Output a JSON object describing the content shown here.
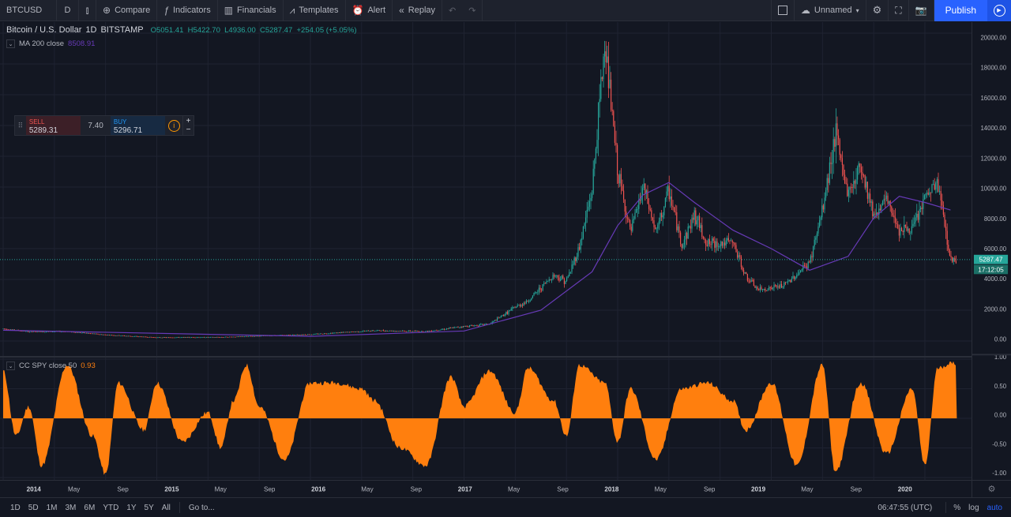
{
  "toolbar": {
    "symbol": "BTCUSD",
    "interval": "D",
    "compare": "Compare",
    "indicators": "Indicators",
    "financials": "Financials",
    "templates": "Templates",
    "alert": "Alert",
    "replay": "Replay",
    "layout_name": "Unnamed",
    "publish": "Publish"
  },
  "legend": {
    "symbol_name": "Bitcoin / U.S. Dollar",
    "interval": "1D",
    "exchange": "BITSTAMP",
    "ohlc": "O5051.41  H5422.70  L4936.00  C5287.47  +254.05 (+5.05%)"
  },
  "ma": {
    "label": "MA 200 close",
    "value": "8508.91"
  },
  "cc": {
    "label": "CC SPY close 50",
    "value": "0.93"
  },
  "trade": {
    "sell_label": "SELL",
    "sell_price": "5289.31",
    "spread": "7.40",
    "buy_label": "BUY",
    "buy_price": "5296.71"
  },
  "price_axis": {
    "ticks": [
      "20000.00",
      "18000.00",
      "16000.00",
      "14000.00",
      "12000.00",
      "10000.00",
      "8000.00",
      "6000.00",
      "4000.00",
      "2000.00",
      "0.00"
    ],
    "last_price": "5287.47",
    "countdown": "17:12:05"
  },
  "cc_axis": {
    "ticks": [
      "1.00",
      "0.50",
      "0.00",
      "-0.50",
      "-1.00"
    ]
  },
  "time_axis": {
    "labels": [
      {
        "t": "2014",
        "bold": true
      },
      {
        "t": "May"
      },
      {
        "t": "Sep"
      },
      {
        "t": "2015",
        "bold": true
      },
      {
        "t": "May"
      },
      {
        "t": "Sep"
      },
      {
        "t": "2016",
        "bold": true
      },
      {
        "t": "May"
      },
      {
        "t": "Sep"
      },
      {
        "t": "2017",
        "bold": true
      },
      {
        "t": "May"
      },
      {
        "t": "Sep"
      },
      {
        "t": "2018",
        "bold": true
      },
      {
        "t": "May"
      },
      {
        "t": "Sep"
      },
      {
        "t": "2019",
        "bold": true
      },
      {
        "t": "May"
      },
      {
        "t": "Sep"
      },
      {
        "t": "2020",
        "bold": true
      }
    ]
  },
  "bottombar": {
    "ranges": [
      "1D",
      "5D",
      "1M",
      "3M",
      "6M",
      "YTD",
      "1Y",
      "5Y",
      "All"
    ],
    "goto": "Go to...",
    "clock": "06:47:55 (UTC)",
    "percent": "%",
    "log": "log",
    "auto": "auto"
  },
  "colors": {
    "background": "#131722",
    "candle_up": "#26a69a",
    "candle_down": "#ef5350",
    "ma": "#673ab7",
    "cc_fill": "#ff7f0e",
    "accent": "#2962ff"
  },
  "chart_data": {
    "type": "candlestick",
    "symbol": "BTCUSD",
    "x_range": [
      "2014-01",
      "2020-03"
    ],
    "ylim": [
      0,
      20000
    ],
    "price_series": [
      {
        "date": "2014-01",
        "close": 800
      },
      {
        "date": "2014-03",
        "close": 600
      },
      {
        "date": "2014-06",
        "close": 620
      },
      {
        "date": "2014-09",
        "close": 400
      },
      {
        "date": "2015-01",
        "close": 230
      },
      {
        "date": "2015-06",
        "close": 250
      },
      {
        "date": "2015-11",
        "close": 380
      },
      {
        "date": "2016-01",
        "close": 430
      },
      {
        "date": "2016-06",
        "close": 680
      },
      {
        "date": "2016-10",
        "close": 620
      },
      {
        "date": "2017-01",
        "close": 950
      },
      {
        "date": "2017-03",
        "close": 1100
      },
      {
        "date": "2017-05",
        "close": 2200
      },
      {
        "date": "2017-06",
        "close": 2600
      },
      {
        "date": "2017-08",
        "close": 4300
      },
      {
        "date": "2017-09",
        "close": 3900
      },
      {
        "date": "2017-10",
        "close": 6100
      },
      {
        "date": "2017-11",
        "close": 9800
      },
      {
        "date": "2017-12",
        "close": 19500
      },
      {
        "date": "2018-01",
        "close": 11000
      },
      {
        "date": "2018-02",
        "close": 7000
      },
      {
        "date": "2018-03",
        "close": 10000
      },
      {
        "date": "2018-04",
        "close": 7000
      },
      {
        "date": "2018-05",
        "close": 9800
      },
      {
        "date": "2018-06",
        "close": 6200
      },
      {
        "date": "2018-07",
        "close": 8200
      },
      {
        "date": "2018-08",
        "close": 6300
      },
      {
        "date": "2018-10",
        "close": 6400
      },
      {
        "date": "2018-11",
        "close": 4200
      },
      {
        "date": "2018-12",
        "close": 3300
      },
      {
        "date": "2019-02",
        "close": 3600
      },
      {
        "date": "2019-04",
        "close": 5100
      },
      {
        "date": "2019-05",
        "close": 8500
      },
      {
        "date": "2019-06",
        "close": 13500
      },
      {
        "date": "2019-07",
        "close": 9500
      },
      {
        "date": "2019-08",
        "close": 11500
      },
      {
        "date": "2019-09",
        "close": 8200
      },
      {
        "date": "2019-10",
        "close": 9200
      },
      {
        "date": "2019-11",
        "close": 7300
      },
      {
        "date": "2019-12",
        "close": 7200
      },
      {
        "date": "2020-01",
        "close": 9300
      },
      {
        "date": "2020-02",
        "close": 10300
      },
      {
        "date": "2020-03",
        "close": 5287.47
      }
    ],
    "ma_200": [
      {
        "date": "2014-01",
        "v": 700
      },
      {
        "date": "2016-01",
        "v": 300
      },
      {
        "date": "2017-01",
        "v": 650
      },
      {
        "date": "2017-07",
        "v": 2000
      },
      {
        "date": "2017-11",
        "v": 4500
      },
      {
        "date": "2018-01",
        "v": 7500
      },
      {
        "date": "2018-03",
        "v": 9500
      },
      {
        "date": "2018-05",
        "v": 10300
      },
      {
        "date": "2018-07",
        "v": 9000
      },
      {
        "date": "2018-10",
        "v": 7200
      },
      {
        "date": "2019-01",
        "v": 6000
      },
      {
        "date": "2019-04",
        "v": 4600
      },
      {
        "date": "2019-07",
        "v": 5500
      },
      {
        "date": "2019-09",
        "v": 8000
      },
      {
        "date": "2019-11",
        "v": 9400
      },
      {
        "date": "2020-01",
        "v": 9000
      },
      {
        "date": "2020-03",
        "v": 8508.91
      }
    ],
    "cc_ylim": [
      -1,
      1
    ],
    "cc_series": [
      {
        "date": "2014-01",
        "v": 0.8
      },
      {
        "date": "2014-02",
        "v": -0.3
      },
      {
        "date": "2014-03",
        "v": 0.2
      },
      {
        "date": "2014-04",
        "v": -0.8
      },
      {
        "date": "2014-06",
        "v": 0.9
      },
      {
        "date": "2014-08",
        "v": -0.3
      },
      {
        "date": "2014-09",
        "v": -0.95
      },
      {
        "date": "2014-10",
        "v": 0.6
      },
      {
        "date": "2014-12",
        "v": -0.2
      },
      {
        "date": "2015-01",
        "v": 0.6
      },
      {
        "date": "2015-03",
        "v": -0.4
      },
      {
        "date": "2015-05",
        "v": 0.1
      },
      {
        "date": "2015-06",
        "v": -0.5
      },
      {
        "date": "2015-07",
        "v": 0.3
      },
      {
        "date": "2015-08",
        "v": 0.9
      },
      {
        "date": "2015-09",
        "v": 0.2
      },
      {
        "date": "2015-11",
        "v": -0.7
      },
      {
        "date": "2016-01",
        "v": 0.6
      },
      {
        "date": "2016-03",
        "v": 0.6
      },
      {
        "date": "2016-05",
        "v": 0.5
      },
      {
        "date": "2016-06",
        "v": 0.3
      },
      {
        "date": "2016-08",
        "v": -0.5
      },
      {
        "date": "2016-10",
        "v": -0.8
      },
      {
        "date": "2016-12",
        "v": 0.7
      },
      {
        "date": "2017-01",
        "v": 0.2
      },
      {
        "date": "2017-03",
        "v": 0.8
      },
      {
        "date": "2017-05",
        "v": 0.1
      },
      {
        "date": "2017-06",
        "v": 0.85
      },
      {
        "date": "2017-08",
        "v": 0.3
      },
      {
        "date": "2017-09",
        "v": -0.3
      },
      {
        "date": "2017-10",
        "v": 0.9
      },
      {
        "date": "2017-12",
        "v": 0.6
      },
      {
        "date": "2018-01",
        "v": -0.4
      },
      {
        "date": "2018-02",
        "v": 0.5
      },
      {
        "date": "2018-04",
        "v": -0.7
      },
      {
        "date": "2018-06",
        "v": 0.5
      },
      {
        "date": "2018-08",
        "v": 0.6
      },
      {
        "date": "2018-10",
        "v": 0.3
      },
      {
        "date": "2018-11",
        "v": -0.2
      },
      {
        "date": "2019-01",
        "v": 0.6
      },
      {
        "date": "2019-03",
        "v": -0.8
      },
      {
        "date": "2019-05",
        "v": 0.9
      },
      {
        "date": "2019-06",
        "v": -0.9
      },
      {
        "date": "2019-08",
        "v": 0.6
      },
      {
        "date": "2019-10",
        "v": -0.6
      },
      {
        "date": "2019-12",
        "v": 0.5
      },
      {
        "date": "2020-01",
        "v": -0.8
      },
      {
        "date": "2020-02",
        "v": 0.85
      },
      {
        "date": "2020-03",
        "v": 0.93
      }
    ],
    "grid": true
  }
}
